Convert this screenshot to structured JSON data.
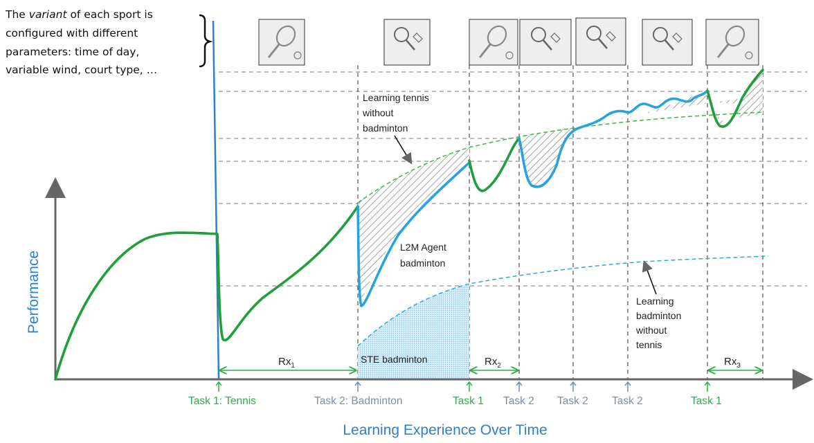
{
  "note": {
    "lines": [
      [
        "The ",
        "variant",
        " of each sport is"
      ],
      [
        "configured with different"
      ],
      [
        "parameters: time of day,"
      ],
      [
        "variable wind, court type, …"
      ]
    ]
  },
  "axes": {
    "ylabel": "Performance",
    "xlabel": "Learning Experience Over Time"
  },
  "task_ticks": [
    {
      "label": "Task 1: Tennis",
      "color": "#2fae47"
    },
    {
      "label": "Task 2: Badminton",
      "color": "#7b8ea6"
    },
    {
      "label": "Task 1",
      "color": "#2fae47"
    },
    {
      "label": "Task 2",
      "color": "#7b8ea6"
    },
    {
      "label": "Task 2",
      "color": "#7b8ea6"
    },
    {
      "label": "Task 2",
      "color": "#7b8ea6"
    },
    {
      "label": "Task 1",
      "color": "#2fae47"
    }
  ],
  "thumbnails": [
    {
      "icon": "tennis-racket-icon"
    },
    {
      "icon": "badminton-racket-icon"
    },
    {
      "icon": "tennis-racket-icon"
    },
    {
      "icon": "badminton-racket-icon"
    },
    {
      "icon": "badminton-racket-icon"
    },
    {
      "icon": "badminton-racket-icon"
    },
    {
      "icon": "tennis-racket-icon"
    }
  ],
  "annotations": {
    "tennis_no_badminton": [
      "Learning tennis",
      "without",
      "badminton"
    ],
    "l2m_agent": [
      "L2M Agent",
      "badminton"
    ],
    "ste": "STE badminton",
    "badminton_no_tennis": [
      "Learning",
      "badminton",
      "without",
      "tennis"
    ]
  },
  "rx_labels": [
    {
      "base": "Rx",
      "sub": "1"
    },
    {
      "base": "Rx",
      "sub": "2"
    },
    {
      "base": "Rx",
      "sub": "3"
    }
  ],
  "colors": {
    "green": "#1f9e3a",
    "blue": "#29a3de",
    "axis_label_blue": "#2e7fc8",
    "light_blue_fill": "#cfe9f8"
  }
}
